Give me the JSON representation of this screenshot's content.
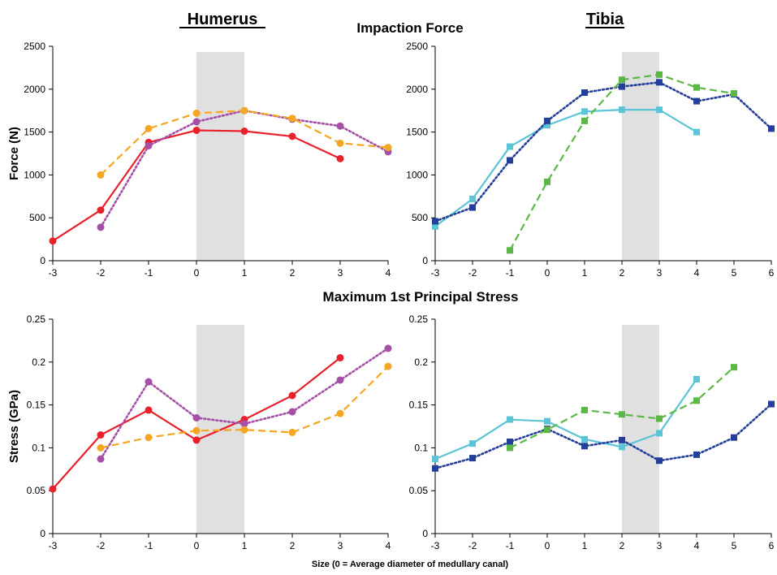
{
  "figure": {
    "headings": {
      "humerus": "Humerus",
      "tibia": "Tibia",
      "force_title": "Impaction Force",
      "stress_title": "Maximum 1st Principal Stress",
      "x_axis_label": "Size (0 = Average diameter of medullary canal)"
    },
    "colors": {
      "red": "#e8212b",
      "purple": "#a64fa6",
      "orange": "#f5a623",
      "cyan": "#5bc4d6",
      "navy": "#233f99",
      "green": "#5bb846",
      "shade": "#e0e0e0"
    }
  },
  "chart_data": [
    {
      "id": "humerus-force",
      "type": "line",
      "ylabel": "Force (N)",
      "xlim": [
        -3,
        4
      ],
      "ylim": [
        0,
        2500
      ],
      "xticks": [
        -3,
        -2,
        -1,
        0,
        1,
        2,
        3,
        4
      ],
      "yticks": [
        0,
        500,
        1000,
        1500,
        2000,
        2500
      ],
      "ytick_labels": [
        "0",
        "500",
        "1000",
        "1500",
        "2000",
        "2500"
      ],
      "shaded_range": [
        0,
        1
      ],
      "series": [
        {
          "name": "humerus-red-solid",
          "color": "red",
          "style": "solid",
          "marker": "circle",
          "x": [
            -3,
            -2,
            -1,
            0,
            1,
            2,
            3
          ],
          "y": [
            230,
            590,
            1380,
            1520,
            1510,
            1450,
            1190
          ]
        },
        {
          "name": "humerus-purple-dotted",
          "color": "purple",
          "style": "dotted",
          "marker": "circle",
          "x": [
            -2,
            -1,
            0,
            1,
            2,
            3,
            4
          ],
          "y": [
            390,
            1340,
            1620,
            1750,
            1650,
            1570,
            1270
          ]
        },
        {
          "name": "humerus-orange-dashed",
          "color": "orange",
          "style": "dashed",
          "marker": "circle",
          "x": [
            -2,
            -1,
            0,
            1,
            2,
            3,
            4
          ],
          "y": [
            1000,
            1540,
            1720,
            1750,
            1660,
            1370,
            1320
          ]
        }
      ]
    },
    {
      "id": "tibia-force",
      "type": "line",
      "ylabel": "",
      "xlim": [
        -3,
        6
      ],
      "ylim": [
        0,
        2500
      ],
      "xticks": [
        -3,
        -2,
        -1,
        0,
        1,
        2,
        3,
        4,
        5,
        6
      ],
      "yticks": [
        0,
        500,
        1000,
        1500,
        2000,
        2500
      ],
      "ytick_labels": [
        "0",
        "500",
        "1000",
        "1500",
        "2000",
        "2500"
      ],
      "shaded_range": [
        2,
        3
      ],
      "series": [
        {
          "name": "tibia-cyan-solid",
          "color": "cyan",
          "style": "solid",
          "marker": "square",
          "x": [
            -3,
            -2,
            -1,
            0,
            1,
            2,
            3,
            4
          ],
          "y": [
            400,
            720,
            1330,
            1580,
            1740,
            1760,
            1760,
            1500
          ]
        },
        {
          "name": "tibia-navy-dotted",
          "color": "navy",
          "style": "dotted",
          "marker": "square",
          "x": [
            -3,
            -2,
            -1,
            0,
            1,
            2,
            3,
            4,
            5,
            6
          ],
          "y": [
            460,
            620,
            1170,
            1630,
            1960,
            2030,
            2080,
            1860,
            1940,
            1540
          ]
        },
        {
          "name": "tibia-green-dashed",
          "color": "green",
          "style": "dashed",
          "marker": "square",
          "x": [
            -1,
            0,
            1,
            2,
            3,
            4,
            5
          ],
          "y": [
            120,
            920,
            1630,
            2110,
            2170,
            2020,
            1950
          ]
        }
      ]
    },
    {
      "id": "humerus-stress",
      "type": "line",
      "ylabel": "Stress (GPa)",
      "xlim": [
        -3,
        4
      ],
      "ylim": [
        0,
        0.25
      ],
      "xticks": [
        -3,
        -2,
        -1,
        0,
        1,
        2,
        3,
        4
      ],
      "yticks": [
        0,
        0.05,
        0.1,
        0.15,
        0.2,
        0.25
      ],
      "ytick_labels": [
        "0",
        "0.05",
        "0.1",
        "0.15",
        "0.2",
        "0.25"
      ],
      "shaded_range": [
        0,
        1
      ],
      "series": [
        {
          "name": "humerus-red-solid",
          "color": "red",
          "style": "solid",
          "marker": "circle",
          "x": [
            -3,
            -2,
            -1,
            0,
            1,
            2,
            3
          ],
          "y": [
            0.052,
            0.115,
            0.144,
            0.109,
            0.133,
            0.161,
            0.205
          ]
        },
        {
          "name": "humerus-purple-dotted",
          "color": "purple",
          "style": "dotted",
          "marker": "circle",
          "x": [
            -2,
            -1,
            0,
            1,
            2,
            3,
            4
          ],
          "y": [
            0.087,
            0.177,
            0.135,
            0.128,
            0.142,
            0.179,
            0.216
          ]
        },
        {
          "name": "humerus-orange-dashed",
          "color": "orange",
          "style": "dashed",
          "marker": "circle",
          "x": [
            -2,
            -1,
            0,
            1,
            2,
            3,
            4
          ],
          "y": [
            0.1,
            0.112,
            0.12,
            0.121,
            0.118,
            0.14,
            0.195
          ]
        }
      ]
    },
    {
      "id": "tibia-stress",
      "type": "line",
      "ylabel": "",
      "xlim": [
        -3,
        6
      ],
      "ylim": [
        0,
        0.25
      ],
      "xticks": [
        -3,
        -2,
        -1,
        0,
        1,
        2,
        3,
        4,
        5,
        6
      ],
      "yticks": [
        0,
        0.05,
        0.1,
        0.15,
        0.2,
        0.25
      ],
      "ytick_labels": [
        "0",
        "0.05",
        "0.1",
        "0.15",
        "0.2",
        "0.25"
      ],
      "shaded_range": [
        2,
        3
      ],
      "series": [
        {
          "name": "tibia-cyan-solid",
          "color": "cyan",
          "style": "solid",
          "marker": "square",
          "x": [
            -3,
            -2,
            -1,
            0,
            1,
            2,
            3,
            4
          ],
          "y": [
            0.087,
            0.105,
            0.133,
            0.131,
            0.11,
            0.101,
            0.117,
            0.18
          ]
        },
        {
          "name": "tibia-navy-dotted",
          "color": "navy",
          "style": "dotted",
          "marker": "square",
          "x": [
            -3,
            -2,
            -1,
            0,
            1,
            2,
            3,
            4,
            5,
            6
          ],
          "y": [
            0.076,
            0.088,
            0.107,
            0.122,
            0.102,
            0.109,
            0.085,
            0.092,
            0.112,
            0.151
          ]
        },
        {
          "name": "tibia-green-dashed",
          "color": "green",
          "style": "dashed",
          "marker": "square",
          "x": [
            -1,
            0,
            1,
            2,
            3,
            4,
            5
          ],
          "y": [
            0.1,
            0.121,
            0.144,
            0.139,
            0.134,
            0.155,
            0.194
          ]
        }
      ]
    }
  ]
}
